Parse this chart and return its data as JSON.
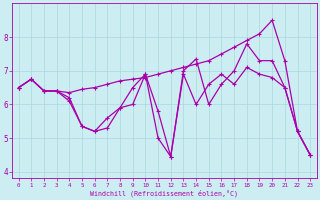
{
  "xlabel": "Windchill (Refroidissement éolien,°C)",
  "background_color": "#cceef2",
  "line_color": "#aa00aa",
  "xlim": [
    -0.5,
    23.5
  ],
  "ylim": [
    3.8,
    9.0
  ],
  "yticks": [
    4,
    5,
    6,
    7,
    8
  ],
  "xticks": [
    0,
    1,
    2,
    3,
    4,
    5,
    6,
    7,
    8,
    9,
    10,
    11,
    12,
    13,
    14,
    15,
    16,
    17,
    18,
    19,
    20,
    21,
    22,
    23
  ],
  "line1_x": [
    0,
    1,
    2,
    3,
    4,
    5,
    6,
    7,
    8,
    9,
    10,
    11,
    12,
    13,
    14,
    15,
    16,
    17,
    18,
    19,
    20,
    21,
    22,
    23
  ],
  "line1_y": [
    6.5,
    6.75,
    6.4,
    6.4,
    6.35,
    6.45,
    6.5,
    6.6,
    6.7,
    6.75,
    6.8,
    6.9,
    7.0,
    7.1,
    7.2,
    7.3,
    7.5,
    7.7,
    7.9,
    8.1,
    8.5,
    7.3,
    5.2,
    4.5
  ],
  "line2_x": [
    0,
    1,
    2,
    3,
    4,
    5,
    6,
    7,
    8,
    9,
    10,
    11,
    12,
    13,
    14,
    15,
    16,
    17,
    18,
    19,
    20,
    21,
    22,
    23
  ],
  "line2_y": [
    6.5,
    6.75,
    6.4,
    6.4,
    6.1,
    5.35,
    5.2,
    5.3,
    5.9,
    6.0,
    6.9,
    5.0,
    4.45,
    7.0,
    7.35,
    6.0,
    6.6,
    7.0,
    7.8,
    7.3,
    7.3,
    6.5,
    5.2,
    4.5
  ],
  "line3_x": [
    0,
    1,
    2,
    3,
    4,
    5,
    6,
    7,
    8,
    9,
    10,
    11,
    12,
    13,
    14,
    15,
    16,
    17,
    18,
    19,
    20,
    21,
    22,
    23
  ],
  "line3_y": [
    6.5,
    6.75,
    6.4,
    6.4,
    6.2,
    5.35,
    5.2,
    5.6,
    5.9,
    6.5,
    6.9,
    5.8,
    4.45,
    6.9,
    6.0,
    6.6,
    6.9,
    6.6,
    7.1,
    6.9,
    6.8,
    6.5,
    5.2,
    4.5
  ],
  "grid_color": "#aad8de",
  "marker": "+",
  "markersize": 3,
  "linewidth": 0.9
}
